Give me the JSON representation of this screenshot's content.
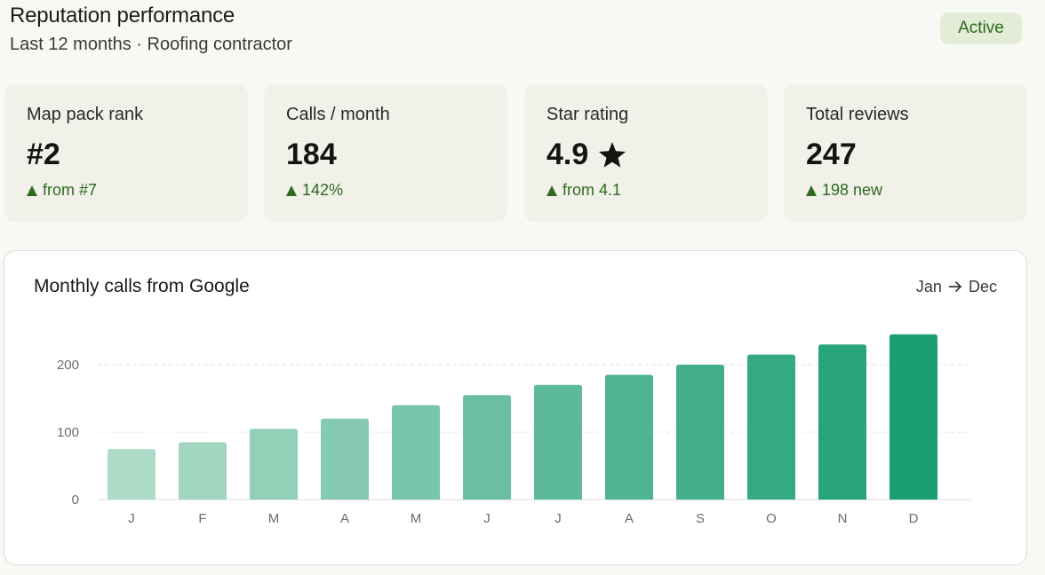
{
  "header": {
    "title": "Reputation performance",
    "subtitle": "Last 12 months · Roofing contractor",
    "status": "Active"
  },
  "kpis": [
    {
      "label": "Map pack rank",
      "value": "#2",
      "delta": "from #7",
      "icon": ""
    },
    {
      "label": "Calls / month",
      "value": "184",
      "delta": "142%",
      "icon": ""
    },
    {
      "label": "Star rating",
      "value": "4.9",
      "delta": "from 4.1",
      "icon": "star-icon"
    },
    {
      "label": "Total reviews",
      "value": "247",
      "delta": "198 new",
      "icon": ""
    }
  ],
  "colors": {
    "accent": "#1a9e72",
    "delta_up": "#2e6b1f",
    "badge_bg": "#e2ecd7"
  },
  "chart": {
    "title": "Monthly calls from Google",
    "range_start": "Jan",
    "range_end": "Dec"
  },
  "chart_data": {
    "type": "bar",
    "title": "Monthly calls from Google",
    "categories": [
      "J",
      "F",
      "M",
      "A",
      "M",
      "J",
      "J",
      "A",
      "S",
      "O",
      "N",
      "D"
    ],
    "values": [
      75,
      85,
      105,
      120,
      140,
      155,
      170,
      185,
      200,
      215,
      230,
      245
    ],
    "ylim": [
      0,
      250
    ],
    "yticks": [
      0,
      100,
      200
    ],
    "grid": true,
    "bar_color_start": "#aedbc8",
    "bar_color_end": "#1a9e72"
  }
}
